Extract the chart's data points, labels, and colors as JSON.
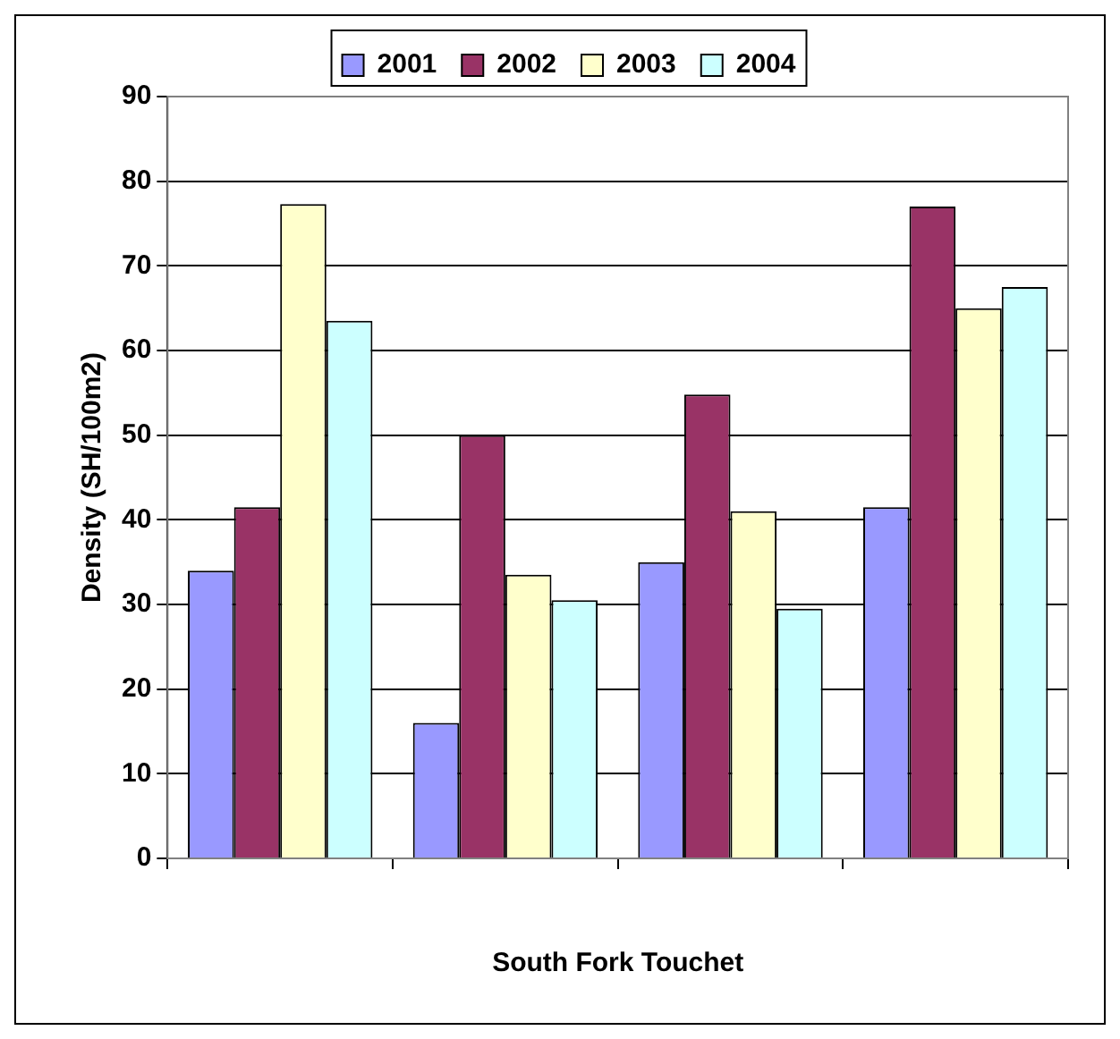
{
  "chart_data": {
    "type": "bar",
    "xlabel": "South Fork Touchet",
    "ylabel": "Density (SH/100m2)",
    "categories": [
      null,
      null,
      null,
      null
    ],
    "series": [
      {
        "name": "2001",
        "color": "#9999ff",
        "values": [
          34,
          16,
          35,
          41.5
        ]
      },
      {
        "name": "2002",
        "color": "#993366",
        "values": [
          41.5,
          50,
          54.8,
          77
        ]
      },
      {
        "name": "2003",
        "color": "#ffffcc",
        "values": [
          77.3,
          33.5,
          41,
          65
        ]
      },
      {
        "name": "2004",
        "color": "#ccffff",
        "values": [
          63.5,
          30.5,
          29.5,
          67.5
        ]
      }
    ],
    "ylim": [
      0,
      90
    ],
    "yticks": [
      0,
      10,
      20,
      30,
      40,
      50,
      60,
      70,
      80,
      90
    ],
    "grid": "y",
    "legend": "top"
  }
}
